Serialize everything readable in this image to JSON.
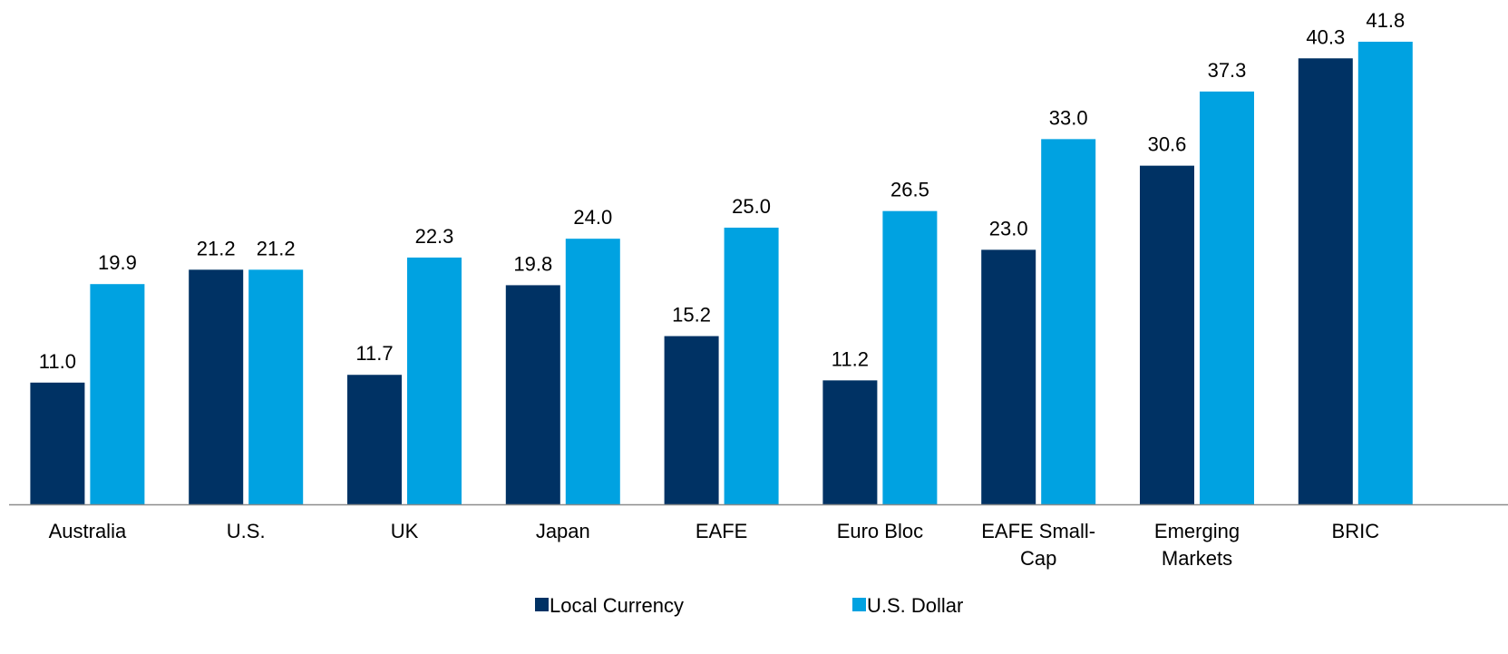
{
  "chart_data": {
    "type": "bar",
    "categories": [
      "Australia",
      "U.S.",
      "UK",
      "Japan",
      "EAFE",
      "Euro Bloc",
      "EAFE Small-\nCap",
      "Emerging\nMarkets",
      "BRIC"
    ],
    "series": [
      {
        "name": "Local Currency",
        "color": "#003264",
        "values": [
          11.0,
          21.2,
          11.7,
          19.8,
          15.2,
          11.2,
          23.0,
          30.6,
          40.3
        ],
        "value_labels": [
          "11.0",
          "21.2",
          "11.7",
          "19.8",
          "15.2",
          "11.2",
          "23.0",
          "30.6",
          "40.3"
        ]
      },
      {
        "name": "U.S. Dollar",
        "color": "#00a2e1",
        "values": [
          19.9,
          21.2,
          22.3,
          24.0,
          25.0,
          26.5,
          33.0,
          37.3,
          41.8
        ],
        "value_labels": [
          "19.9",
          "21.2",
          "22.3",
          "24.0",
          "25.0",
          "26.5",
          "33.0",
          "37.3",
          "41.8"
        ]
      }
    ],
    "legend": "bottom"
  }
}
